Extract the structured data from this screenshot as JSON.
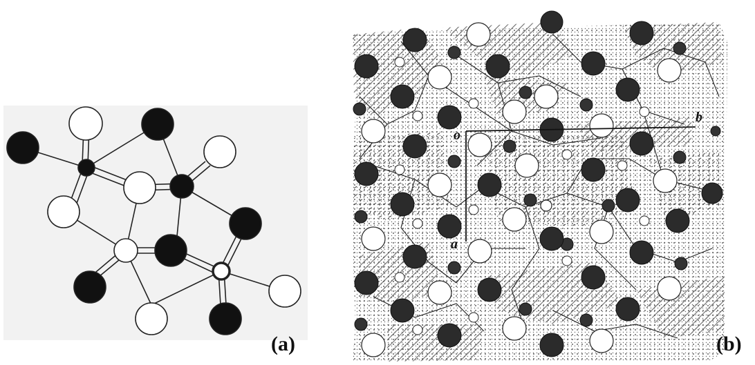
{
  "panels": {
    "a": {
      "label": "(a)"
    },
    "b": {
      "label": "(b)",
      "axes": {
        "origin": "o",
        "b": "b",
        "a": "a"
      }
    }
  },
  "colors": {
    "black_atom": "#111111",
    "dark_atom": "#333333",
    "white_atom": "#ffffff",
    "bond": "#222222",
    "panel_a_background": "#f2f2f2",
    "hatch": "#555555"
  }
}
